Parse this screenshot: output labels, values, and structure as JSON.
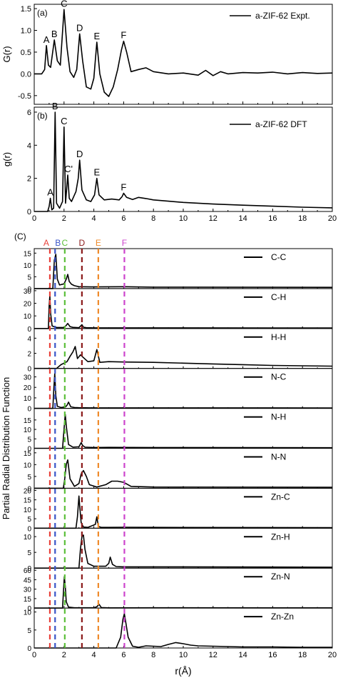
{
  "chart_data": [
    {
      "type": "line",
      "panel_label": "(a)",
      "ylabel": "G(r)",
      "xlim": [
        0,
        20
      ],
      "ylim": [
        -0.7,
        1.6
      ],
      "yticks": [
        "-0.5",
        "0.0",
        "0.5",
        "1.0",
        "1.5"
      ],
      "xticks": [],
      "legend": "a-ZIF-62 Expt.",
      "peaks": [
        {
          "label": "A",
          "x": 0.82,
          "y": 0.65
        },
        {
          "label": "B",
          "x": 1.35,
          "y": 0.78
        },
        {
          "label": "C",
          "x": 2.0,
          "y": 1.48
        },
        {
          "label": "D",
          "x": 3.05,
          "y": 0.92
        },
        {
          "label": "E",
          "x": 4.2,
          "y": 0.73
        },
        {
          "label": "F",
          "x": 6.0,
          "y": 0.75
        }
      ],
      "series": [
        {
          "x": [
            0,
            0.5,
            0.7,
            0.82,
            0.95,
            1.1,
            1.35,
            1.55,
            1.75,
            2.0,
            2.2,
            2.4,
            2.65,
            2.85,
            3.05,
            3.25,
            3.5,
            3.8,
            4.0,
            4.2,
            4.4,
            4.7,
            5.0,
            5.3,
            5.6,
            5.85,
            6.0,
            6.2,
            6.5,
            7.0,
            7.5,
            8,
            9,
            10,
            11,
            11.5,
            12,
            12.5,
            13,
            14,
            15,
            16,
            17,
            18,
            19,
            20
          ],
          "y": [
            0,
            0,
            0.1,
            0.65,
            0.2,
            0.15,
            0.78,
            0.3,
            0.2,
            1.48,
            0.6,
            0.05,
            -0.08,
            0.1,
            0.92,
            0.3,
            -0.3,
            -0.35,
            -0.1,
            0.73,
            0.0,
            -0.42,
            -0.52,
            -0.3,
            0.1,
            0.55,
            0.75,
            0.5,
            0.05,
            0.1,
            0.14,
            0.05,
            0.0,
            0.02,
            -0.03,
            0.08,
            -0.04,
            0.05,
            0.0,
            0.03,
            0.02,
            0.04,
            0.0,
            0.03,
            0.01,
            0.02
          ]
        }
      ]
    },
    {
      "type": "line",
      "panel_label": "(b)",
      "ylabel": "g(r)",
      "xlim": [
        0,
        20
      ],
      "ylim": [
        0,
        6.3
      ],
      "yticks": [
        "0",
        "2",
        "4",
        "6"
      ],
      "xticks": [
        "0",
        "2",
        "4",
        "6",
        "8",
        "10",
        "12",
        "14",
        "16",
        "18",
        "20"
      ],
      "legend": "a-ZIF-62 DFT",
      "peaks": [
        {
          "label": "A",
          "x": 1.08,
          "y": 0.8
        },
        {
          "label": "B",
          "x": 1.4,
          "y": 6.0
        },
        {
          "label": "C",
          "x": 2.0,
          "y": 5.1
        },
        {
          "label": "C'",
          "x": 2.3,
          "y": 2.2
        },
        {
          "label": "D",
          "x": 3.05,
          "y": 3.1
        },
        {
          "label": "E",
          "x": 4.2,
          "y": 2.0
        },
        {
          "label": "F",
          "x": 6.0,
          "y": 1.1
        }
      ],
      "series": [
        {
          "x": [
            0,
            0.9,
            1.0,
            1.08,
            1.18,
            1.3,
            1.4,
            1.5,
            1.7,
            1.9,
            2.0,
            2.1,
            2.25,
            2.35,
            2.5,
            2.8,
            2.95,
            3.05,
            3.2,
            3.5,
            3.8,
            4.05,
            4.2,
            4.35,
            4.7,
            5.2,
            5.7,
            5.9,
            6.0,
            6.2,
            6.6,
            7.0,
            7.5,
            8,
            9,
            10,
            12,
            14,
            16,
            18,
            20
          ],
          "y": [
            0,
            0,
            0.3,
            0.8,
            0.1,
            0.2,
            6.0,
            0.5,
            0.2,
            0.6,
            5.1,
            0.5,
            2.2,
            0.8,
            0.6,
            1.2,
            2.0,
            3.1,
            1.3,
            0.7,
            0.6,
            1.0,
            2.0,
            1.0,
            0.7,
            0.75,
            0.7,
            0.9,
            1.1,
            0.85,
            0.72,
            0.85,
            0.78,
            0.7,
            0.62,
            0.55,
            0.45,
            0.38,
            0.32,
            0.26,
            0.22
          ]
        }
      ]
    },
    {
      "type": "line",
      "panel_label": "(C)",
      "ylabel": "Partial Radial Distribution Function",
      "xlabel": "r(Å)",
      "xlim": [
        0,
        20
      ],
      "xticks": [
        "0",
        "2",
        "4",
        "6",
        "8",
        "10",
        "12",
        "14",
        "16",
        "18",
        "20"
      ],
      "reference_lines": [
        {
          "label": "A",
          "x": 1.05,
          "color": "#e8413a"
        },
        {
          "label": "B",
          "x": 1.4,
          "color": "#3a55c8"
        },
        {
          "label": "C",
          "x": 2.05,
          "color": "#5cbf3a"
        },
        {
          "label": "D",
          "x": 3.2,
          "color": "#8b1a1a"
        },
        {
          "label": "E",
          "x": 4.3,
          "color": "#ef8a2a"
        },
        {
          "label": "F",
          "x": 6.05,
          "color": "#cc44cc"
        }
      ],
      "series": [
        {
          "name": "C-C",
          "ylim": [
            0,
            16
          ],
          "yticks": [
            "0",
            "5",
            "10",
            "15"
          ],
          "x": [
            0,
            1.25,
            1.35,
            1.45,
            1.55,
            1.7,
            2.0,
            2.15,
            2.25,
            2.35,
            2.5,
            2.7,
            3.0,
            4,
            6,
            8,
            20
          ],
          "y": [
            0,
            0,
            12,
            14.5,
            4,
            1.5,
            2,
            4,
            6,
            3,
            1.8,
            1.2,
            0.8,
            0.7,
            0.8,
            0.6,
            0.5
          ]
        },
        {
          "name": "C-H",
          "ylim": [
            0,
            30
          ],
          "yticks": [
            "0",
            "10",
            "20",
            "30"
          ],
          "x": [
            0,
            0.95,
            1.0,
            1.05,
            1.1,
            1.2,
            1.5,
            2.0,
            2.15,
            2.25,
            2.4,
            2.6,
            3.0,
            3.2,
            3.3,
            3.5,
            4,
            6,
            20
          ],
          "y": [
            0,
            0,
            18,
            26,
            12,
            2,
            0.8,
            0.8,
            2.5,
            4,
            1.5,
            0.9,
            0.6,
            3,
            1,
            0.6,
            0.5,
            0.5,
            0.4
          ]
        },
        {
          "name": "H-H",
          "ylim": [
            0,
            5
          ],
          "yticks": [
            "0",
            "2",
            "4"
          ],
          "x": [
            0,
            1.5,
            1.8,
            2.2,
            2.4,
            2.6,
            2.75,
            2.9,
            3.1,
            3.6,
            4.0,
            4.2,
            4.4,
            5,
            6,
            8,
            10,
            12,
            14,
            16,
            18,
            20
          ],
          "y": [
            0,
            0,
            0.5,
            0.9,
            1.6,
            2.2,
            2.9,
            1.3,
            1.8,
            0.9,
            1.0,
            2.5,
            0.8,
            0.9,
            0.85,
            0.8,
            0.7,
            0.6,
            0.5,
            0.4,
            0.35,
            0.3
          ]
        },
        {
          "name": "N-C",
          "ylim": [
            0,
            36
          ],
          "yticks": [
            "0",
            "10",
            "20",
            "30"
          ],
          "x": [
            0,
            1.25,
            1.32,
            1.38,
            1.45,
            1.55,
            1.8,
            2.1,
            2.2,
            2.3,
            2.45,
            2.7,
            3.0,
            4.0,
            5,
            20
          ],
          "y": [
            0,
            0,
            20,
            33,
            12,
            2,
            0.8,
            1.5,
            3,
            6,
            1.5,
            0.8,
            0.6,
            0.5,
            0.5,
            0.4
          ]
        },
        {
          "name": "N-H",
          "ylim": [
            0,
            20
          ],
          "yticks": [
            "0",
            "5",
            "10",
            "15"
          ],
          "x": [
            0,
            1.9,
            2.0,
            2.08,
            2.15,
            2.3,
            2.6,
            3.0,
            3.15,
            3.25,
            3.4,
            4,
            5,
            8,
            20
          ],
          "y": [
            0,
            0,
            10,
            18,
            12,
            2,
            0.6,
            0.8,
            3,
            1.5,
            0.6,
            0.4,
            0.5,
            0.4,
            0.3
          ]
        },
        {
          "name": "N-N",
          "ylim": [
            0,
            16
          ],
          "yticks": [
            "0",
            "5",
            "10",
            "15"
          ],
          "x": [
            0,
            1.95,
            2.05,
            2.15,
            2.25,
            2.4,
            2.7,
            3.0,
            3.15,
            3.3,
            3.5,
            3.7,
            4.2,
            4.8,
            5.2,
            5.6,
            6.0,
            6.5,
            8,
            20
          ],
          "y": [
            0,
            0,
            4,
            10,
            12,
            4,
            0.8,
            2,
            6,
            7.5,
            5,
            1.5,
            0.5,
            1.5,
            3,
            3,
            2.5,
            0.8,
            0.5,
            0.4
          ]
        },
        {
          "name": "Zn-C",
          "ylim": [
            0,
            20
          ],
          "yticks": [
            "0",
            "5",
            "10",
            "15",
            "20"
          ],
          "x": [
            0,
            2.8,
            2.9,
            3.0,
            3.05,
            3.15,
            3.3,
            3.6,
            4.1,
            4.2,
            4.3,
            4.5,
            5,
            6,
            8,
            20
          ],
          "y": [
            0,
            0,
            6,
            17,
            12,
            3,
            0.6,
            0.4,
            2,
            6,
            1,
            0.4,
            0.4,
            0.5,
            0.4,
            0.3
          ]
        },
        {
          "name": "Zn-H",
          "ylim": [
            0,
            12
          ],
          "yticks": [
            "0",
            "5",
            "10"
          ],
          "x": [
            0,
            3.0,
            3.1,
            3.2,
            3.3,
            3.4,
            3.6,
            4,
            4.8,
            5.0,
            5.1,
            5.25,
            5.5,
            6,
            8,
            20
          ],
          "y": [
            0,
            0,
            6,
            10,
            10.5,
            6,
            1.5,
            0.6,
            0.6,
            1.5,
            3.5,
            1.2,
            0.5,
            0.4,
            0.4,
            0.3
          ]
        },
        {
          "name": "Zn-N",
          "ylim": [
            0,
            60
          ],
          "yticks": [
            "0",
            "15",
            "30",
            "45",
            "60"
          ],
          "x": [
            0,
            1.9,
            1.97,
            2.02,
            2.08,
            2.15,
            2.3,
            2.7,
            3.0,
            4.0,
            4.2,
            4.35,
            4.5,
            5,
            8,
            20
          ],
          "y": [
            0,
            0,
            30,
            50,
            35,
            10,
            1.5,
            0.5,
            0.5,
            0.4,
            2,
            6,
            0.8,
            0.3,
            0.4,
            0.3
          ]
        },
        {
          "name": "Zn-Zn",
          "ylim": [
            0,
            10.5
          ],
          "yticks": [
            "0",
            "5",
            "10"
          ],
          "x": [
            0,
            5.5,
            5.8,
            5.95,
            6.05,
            6.15,
            6.3,
            6.6,
            7.0,
            7.5,
            8,
            8.5,
            9,
            9.5,
            10,
            10.5,
            11,
            12,
            13,
            14,
            16,
            18,
            20
          ],
          "y": [
            0,
            0,
            3,
            8,
            9.5,
            7,
            3,
            0.5,
            0.2,
            0.6,
            0.5,
            0.4,
            1,
            1.5,
            1.2,
            0.8,
            0.6,
            0.5,
            0.4,
            0.3,
            0.3,
            0.2,
            0.2
          ]
        }
      ]
    }
  ]
}
